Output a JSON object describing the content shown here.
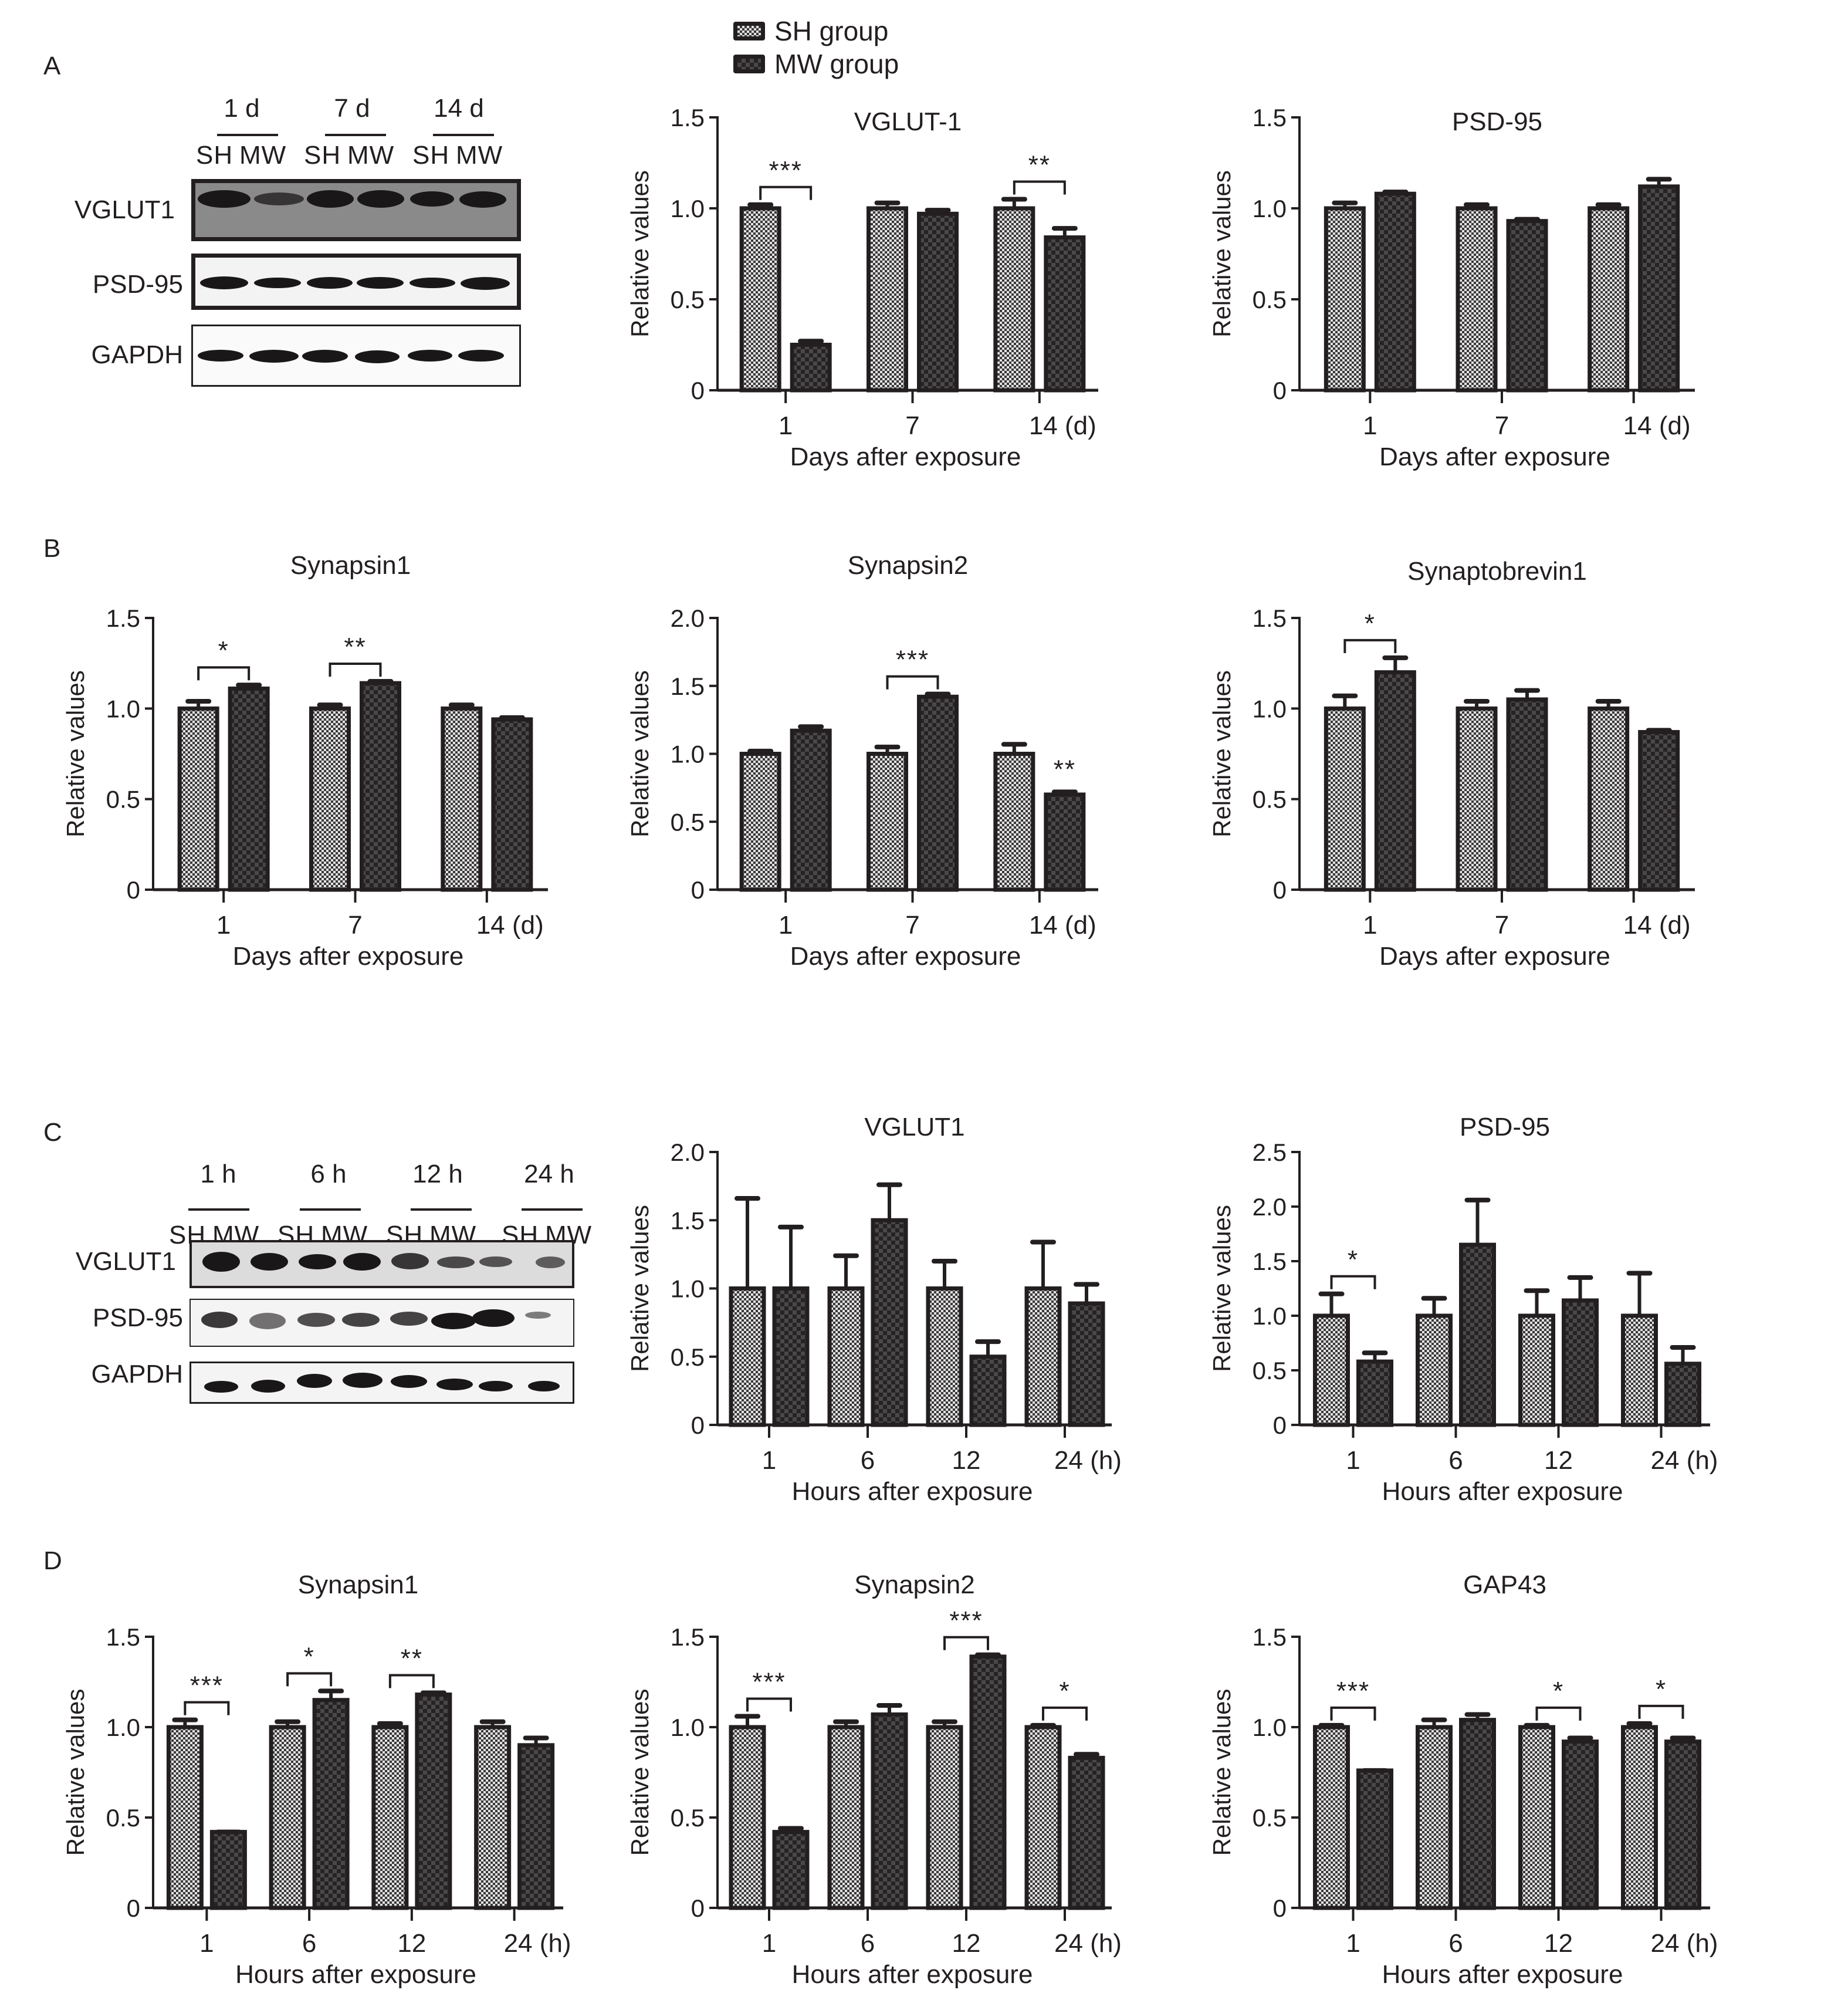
{
  "legend": {
    "items": [
      {
        "label": "SH group",
        "pattern": "fine-checker-light",
        "color": "#c9c9c9"
      },
      {
        "label": "MW group",
        "pattern": "coarse-checker-dark",
        "color": "#3a3839"
      }
    ]
  },
  "panel_labels": [
    "A",
    "B",
    "C",
    "D"
  ],
  "blots": [
    {
      "panel": "A",
      "timepoints": [
        "1 d",
        "7 d",
        "14 d"
      ],
      "lanes": [
        "SH",
        "MW",
        "SH",
        "MW",
        "SH",
        "MW"
      ],
      "proteins": [
        "VGLUT1",
        "PSD-95",
        "GAPDH"
      ]
    },
    {
      "panel": "C",
      "timepoints": [
        "1 h",
        "6 h",
        "12 h",
        "24 h"
      ],
      "lanes": [
        "SH",
        "MW",
        "SH",
        "MW",
        "SH",
        "MW",
        "SH",
        "MW"
      ],
      "proteins": [
        "VGLUT1",
        "PSD-95",
        "GAPDH"
      ]
    }
  ],
  "chart_data": [
    {
      "id": "A-VGLUT-1",
      "panel": "A",
      "type": "bar",
      "title": "VGLUT-1",
      "xlabel": "Days after exposure",
      "ylabel": "Relative values",
      "categories": [
        "1",
        "7",
        "14 (d)"
      ],
      "ylim": [
        0,
        1.5
      ],
      "yticks": [
        "0",
        "0.5",
        "1.0",
        "1.5"
      ],
      "ytick_values": [
        0,
        0.5,
        1.0,
        1.5
      ],
      "series": [
        {
          "name": "SH group",
          "values": [
            1.0,
            1.0,
            1.0
          ],
          "errors": [
            0.02,
            0.03,
            0.05
          ]
        },
        {
          "name": "MW group",
          "values": [
            0.25,
            0.97,
            0.84
          ],
          "errors": [
            0.02,
            0.02,
            0.05
          ]
        }
      ],
      "significance": [
        {
          "category": 0,
          "label": "***",
          "bracket": true
        },
        {
          "category": 2,
          "label": "**",
          "bracket": true
        }
      ]
    },
    {
      "id": "A-PSD-95",
      "panel": "A",
      "type": "bar",
      "title": "PSD-95",
      "xlabel": "Days after exposure",
      "ylabel": "Relative values",
      "categories": [
        "1",
        "7",
        "14 (d)"
      ],
      "ylim": [
        0,
        1.5
      ],
      "yticks": [
        "0",
        "0.5",
        "1.0",
        "1.5"
      ],
      "ytick_values": [
        0,
        0.5,
        1.0,
        1.5
      ],
      "series": [
        {
          "name": "SH group",
          "values": [
            1.0,
            1.0,
            1.0
          ],
          "errors": [
            0.03,
            0.02,
            0.02
          ]
        },
        {
          "name": "MW group",
          "values": [
            1.08,
            0.93,
            1.12
          ],
          "errors": [
            0.01,
            0.01,
            0.04
          ]
        }
      ],
      "significance": []
    },
    {
      "id": "B-Synapsin1",
      "panel": "B",
      "type": "bar",
      "title": "Synapsin1",
      "xlabel": "Days after exposure",
      "ylabel": "Relative values",
      "categories": [
        "1",
        "7",
        "14 (d)"
      ],
      "ylim": [
        0,
        1.5
      ],
      "yticks": [
        "0",
        "0.5",
        "1.0",
        "1.5"
      ],
      "ytick_values": [
        0,
        0.5,
        1.0,
        1.5
      ],
      "series": [
        {
          "name": "SH group",
          "values": [
            1.0,
            1.0,
            1.0
          ],
          "errors": [
            0.04,
            0.02,
            0.02
          ]
        },
        {
          "name": "MW group",
          "values": [
            1.11,
            1.14,
            0.94
          ],
          "errors": [
            0.02,
            0.01,
            0.01
          ]
        }
      ],
      "significance": [
        {
          "category": 0,
          "label": "*",
          "bracket": true
        },
        {
          "category": 1,
          "label": "**",
          "bracket": true
        }
      ]
    },
    {
      "id": "B-Synapsin2",
      "panel": "B",
      "type": "bar",
      "title": "Synapsin2",
      "xlabel": "Days after exposure",
      "ylabel": "Relative values",
      "categories": [
        "1",
        "7",
        "14 (d)"
      ],
      "ylim": [
        0,
        2.0
      ],
      "yticks": [
        "0",
        "0.5",
        "1.0",
        "1.5",
        "2.0"
      ],
      "ytick_values": [
        0,
        0.5,
        1.0,
        1.5,
        2.0
      ],
      "series": [
        {
          "name": "SH group",
          "values": [
            1.0,
            1.0,
            1.0
          ],
          "errors": [
            0.02,
            0.05,
            0.07
          ]
        },
        {
          "name": "MW group",
          "values": [
            1.17,
            1.42,
            0.7
          ],
          "errors": [
            0.03,
            0.02,
            0.02
          ]
        }
      ],
      "significance": [
        {
          "category": 1,
          "label": "***",
          "bracket": true
        },
        {
          "category": 2,
          "label": "**",
          "bracket": false
        }
      ]
    },
    {
      "id": "B-Synaptobrevin1",
      "panel": "B",
      "type": "bar",
      "title": "Synaptobrevin1",
      "xlabel": "Days after exposure",
      "ylabel": "Relative values",
      "categories": [
        "1",
        "7",
        "14 (d)"
      ],
      "ylim": [
        0,
        1.5
      ],
      "yticks": [
        "0",
        "0.5",
        "1.0",
        "1.5"
      ],
      "ytick_values": [
        0,
        0.5,
        1.0,
        1.5
      ],
      "series": [
        {
          "name": "SH group",
          "values": [
            1.0,
            1.0,
            1.0
          ],
          "errors": [
            0.07,
            0.04,
            0.04
          ]
        },
        {
          "name": "MW group",
          "values": [
            1.2,
            1.05,
            0.87
          ],
          "errors": [
            0.08,
            0.05,
            0.01
          ]
        }
      ],
      "significance": [
        {
          "category": 0,
          "label": "*",
          "bracket": true
        }
      ]
    },
    {
      "id": "C-VGLUT1",
      "panel": "C",
      "type": "bar",
      "title": "VGLUT1",
      "xlabel": "Hours after exposure",
      "ylabel": "Relative values",
      "categories": [
        "1",
        "6",
        "12",
        "24 (h)"
      ],
      "ylim": [
        0,
        2.0
      ],
      "yticks": [
        "0",
        "0.5",
        "1.0",
        "1.5",
        "2.0"
      ],
      "ytick_values": [
        0,
        0.5,
        1.0,
        1.5,
        2.0
      ],
      "series": [
        {
          "name": "SH group",
          "values": [
            1.0,
            1.0,
            1.0,
            1.0
          ],
          "errors": [
            0.66,
            0.24,
            0.2,
            0.34
          ]
        },
        {
          "name": "MW group",
          "values": [
            1.0,
            1.5,
            0.5,
            0.89
          ],
          "errors": [
            0.45,
            0.26,
            0.11,
            0.14
          ]
        }
      ],
      "significance": []
    },
    {
      "id": "C-PSD-95",
      "panel": "C",
      "type": "bar",
      "title": "PSD-95",
      "xlabel": "Hours after exposure",
      "ylabel": "Relative values",
      "categories": [
        "1",
        "6",
        "12",
        "24 (h)"
      ],
      "ylim": [
        0,
        2.5
      ],
      "yticks": [
        "0",
        "0.5",
        "1.0",
        "1.5",
        "2.0",
        "2.5"
      ],
      "ytick_values": [
        0,
        0.5,
        1.0,
        1.5,
        2.0,
        2.5
      ],
      "series": [
        {
          "name": "SH group",
          "values": [
            1.0,
            1.0,
            1.0,
            1.0
          ],
          "errors": [
            0.2,
            0.16,
            0.23,
            0.39
          ]
        },
        {
          "name": "MW group",
          "values": [
            0.58,
            1.65,
            1.14,
            0.56
          ],
          "errors": [
            0.08,
            0.41,
            0.21,
            0.15
          ]
        }
      ],
      "significance": [
        {
          "category": 0,
          "label": "*",
          "bracket": true
        }
      ]
    },
    {
      "id": "D-Synapsin1",
      "panel": "D",
      "type": "bar",
      "title": "Synapsin1",
      "xlabel": "Hours after exposure",
      "ylabel": "Relative values",
      "categories": [
        "1",
        "6",
        "12",
        "24 (h)"
      ],
      "ylim": [
        0,
        1.5
      ],
      "yticks": [
        "0",
        "0.5",
        "1.0",
        "1.5"
      ],
      "ytick_values": [
        0,
        0.5,
        1.0,
        1.5
      ],
      "series": [
        {
          "name": "SH group",
          "values": [
            1.0,
            1.0,
            1.0,
            1.0
          ],
          "errors": [
            0.04,
            0.03,
            0.02,
            0.03
          ]
        },
        {
          "name": "MW group",
          "values": [
            0.42,
            1.15,
            1.18,
            0.9
          ],
          "errors": [
            0.0,
            0.05,
            0.01,
            0.04
          ]
        }
      ],
      "significance": [
        {
          "category": 0,
          "label": "***",
          "bracket": true
        },
        {
          "category": 1,
          "label": "*",
          "bracket": true
        },
        {
          "category": 2,
          "label": "**",
          "bracket": true
        }
      ]
    },
    {
      "id": "D-Synapsin2",
      "panel": "D",
      "type": "bar",
      "title": "Synapsin2",
      "xlabel": "Hours after exposure",
      "ylabel": "Relative values",
      "categories": [
        "1",
        "6",
        "12",
        "24 (h)"
      ],
      "ylim": [
        0,
        1.5
      ],
      "yticks": [
        "0",
        "0.5",
        "1.0",
        "1.5"
      ],
      "ytick_values": [
        0,
        0.5,
        1.0,
        1.5
      ],
      "series": [
        {
          "name": "SH group",
          "values": [
            1.0,
            1.0,
            1.0,
            1.0
          ],
          "errors": [
            0.06,
            0.03,
            0.03,
            0.01
          ]
        },
        {
          "name": "MW group",
          "values": [
            0.42,
            1.07,
            1.39,
            0.83
          ],
          "errors": [
            0.02,
            0.05,
            0.01,
            0.02
          ]
        }
      ],
      "significance": [
        {
          "category": 0,
          "label": "***",
          "bracket": true
        },
        {
          "category": 2,
          "label": "***",
          "bracket": true
        },
        {
          "category": 3,
          "label": "*",
          "bracket": true
        }
      ]
    },
    {
      "id": "D-GAP43",
      "panel": "D",
      "type": "bar",
      "title": "GAP43",
      "xlabel": "Hours after exposure",
      "ylabel": "Relative values",
      "categories": [
        "1",
        "6",
        "12",
        "24 (h)"
      ],
      "ylim": [
        0,
        1.5
      ],
      "yticks": [
        "0",
        "0.5",
        "1.0",
        "1.5"
      ],
      "ytick_values": [
        0,
        0.5,
        1.0,
        1.5
      ],
      "series": [
        {
          "name": "SH group",
          "values": [
            1.0,
            1.0,
            1.0,
            1.0
          ],
          "errors": [
            0.01,
            0.04,
            0.01,
            0.02
          ]
        },
        {
          "name": "MW group",
          "values": [
            0.76,
            1.04,
            0.92,
            0.92
          ],
          "errors": [
            0.0,
            0.03,
            0.02,
            0.02
          ]
        }
      ],
      "significance": [
        {
          "category": 0,
          "label": "***",
          "bracket": true
        },
        {
          "category": 2,
          "label": "*",
          "bracket": true
        },
        {
          "category": 3,
          "label": "*",
          "bracket": true
        }
      ]
    }
  ]
}
